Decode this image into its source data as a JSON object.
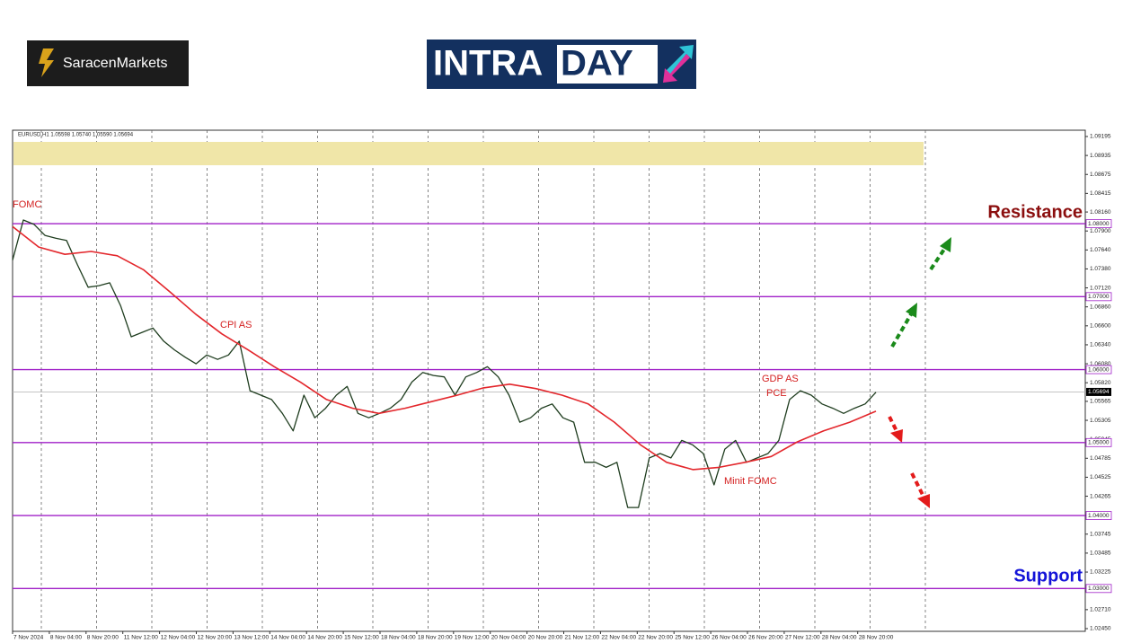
{
  "header": {
    "logo_left": "SaracenMarkets",
    "logo_right": [
      "INTRA",
      "DAY"
    ]
  },
  "chart_data": {
    "type": "line",
    "title": "EURUSD,H1  1.05598 1.05740 1.05590 1.05694",
    "x_labels": [
      "7 Nov 2024",
      "8 Nov 04:00",
      "8 Nov 20:00",
      "11 Nov 12:00",
      "12 Nov 04:00",
      "12 Nov 20:00",
      "13 Nov 12:00",
      "14 Nov 04:00",
      "14 Nov 20:00",
      "15 Nov 12:00",
      "18 Nov 04:00",
      "18 Nov 20:00",
      "19 Nov 12:00",
      "20 Nov 04:00",
      "20 Nov 20:00",
      "21 Nov 12:00",
      "22 Nov 04:00",
      "22 Nov 20:00",
      "25 Nov 12:00",
      "26 Nov 04:00",
      "26 Nov 20:00",
      "27 Nov 12:00",
      "28 Nov 04:00",
      "28 Nov 20:00"
    ],
    "series": [
      {
        "name": "EURUSD",
        "color": "#1f3d1f",
        "values": [
          1.075,
          1.0805,
          1.0799,
          1.0784,
          1.078,
          1.0777,
          1.0744,
          1.0713,
          1.0715,
          1.0719,
          1.0688,
          1.0645,
          1.0651,
          1.0657,
          1.0639,
          1.0627,
          1.0617,
          1.0608,
          1.062,
          1.0614,
          1.062,
          1.0639,
          1.0571,
          1.0565,
          1.0559,
          1.054,
          1.0516,
          1.0565,
          1.0534,
          1.0547,
          1.0565,
          1.0577,
          1.054,
          1.0534,
          1.054,
          1.0547,
          1.0559,
          1.0583,
          1.0596,
          1.0592,
          1.059,
          1.0565,
          1.059,
          1.0596,
          1.0604,
          1.059,
          1.0565,
          1.0528,
          1.0534,
          1.0547,
          1.0553,
          1.0534,
          1.0528,
          1.0473,
          1.0473,
          1.0466,
          1.0473,
          1.0411,
          1.0411,
          1.0479,
          1.0485,
          1.0479,
          1.0503,
          1.0497,
          1.0485,
          1.0442,
          1.0491,
          1.0503,
          1.0473,
          1.0479,
          1.0485,
          1.0503,
          1.0559,
          1.0571,
          1.0565,
          1.0553,
          1.0547,
          1.054,
          1.0547,
          1.0553,
          1.0569
        ]
      },
      {
        "name": "MA",
        "color": "#e3262b",
        "values": [
          1.0796,
          1.0768,
          1.0758,
          1.0762,
          1.0756,
          1.0737,
          1.0707,
          1.0676,
          1.0649,
          1.0627,
          1.0604,
          1.0583,
          1.0559,
          1.0547,
          1.054,
          1.0547,
          1.0556,
          1.0565,
          1.0575,
          1.058,
          1.0574,
          1.0565,
          1.0553,
          1.0528,
          1.0497,
          1.0473,
          1.0463,
          1.0466,
          1.0473,
          1.0481,
          1.0501,
          1.0516,
          1.0528,
          1.0543
        ]
      }
    ],
    "ylim": [
      1.02413,
      1.09281
    ],
    "yticks": [
      {
        "value": 1.09195,
        "label": "1.09195"
      },
      {
        "value": 1.08935,
        "label": "1.08935"
      },
      {
        "value": 1.08675,
        "label": "1.08675"
      },
      {
        "value": 1.08415,
        "label": "1.08415"
      },
      {
        "value": 1.0816,
        "label": "1.08160"
      },
      {
        "value": 1.079,
        "label": "1.07900"
      },
      {
        "value": 1.0764,
        "label": "1.07640"
      },
      {
        "value": 1.0738,
        "label": "1.07380"
      },
      {
        "value": 1.0712,
        "label": "1.07120"
      },
      {
        "value": 1.0686,
        "label": "1.06860"
      },
      {
        "value": 1.066,
        "label": "1.06600"
      },
      {
        "value": 1.0634,
        "label": "1.06340"
      },
      {
        "value": 1.0608,
        "label": "1.06080"
      },
      {
        "value": 1.0582,
        "label": "1.05820"
      },
      {
        "value": 1.05565,
        "label": "1.05565"
      },
      {
        "value": 1.05305,
        "label": "1.05305"
      },
      {
        "value": 1.05045,
        "label": "1.05045"
      },
      {
        "value": 1.04785,
        "label": "1.04785"
      },
      {
        "value": 1.04525,
        "label": "1.04525"
      },
      {
        "value": 1.04265,
        "label": "1.04265"
      },
      {
        "value": 1.04005,
        "label": "1.04005"
      },
      {
        "value": 1.03745,
        "label": "1.03745"
      },
      {
        "value": 1.03485,
        "label": "1.03485"
      },
      {
        "value": 1.03225,
        "label": "1.03225"
      },
      {
        "value": 1.02965,
        "label": "1.02965"
      },
      {
        "value": 1.0271,
        "label": "1.02710"
      },
      {
        "value": 1.0245,
        "label": "1.02450"
      }
    ],
    "levels": [
      {
        "value": 1.08,
        "label": "1.08000"
      },
      {
        "value": 1.07,
        "label": "1.07000"
      },
      {
        "value": 1.06,
        "label": "1.06000"
      },
      {
        "value": 1.05,
        "label": "1.05000"
      },
      {
        "value": 1.04,
        "label": "1.04000"
      },
      {
        "value": 1.03,
        "label": "1.03000"
      }
    ],
    "level_color": "#a020c8",
    "current_price": {
      "value": 1.05694,
      "label": "1.05694"
    },
    "zone": [
      1.08801,
      1.09121
    ],
    "zone_color": "#f0e6a8",
    "annotations": [
      "FOMC",
      "CPI AS",
      "GDP AS",
      "PCE",
      "Minit FOMC"
    ],
    "resistance_label": "Resistance",
    "support_label": "Support"
  }
}
